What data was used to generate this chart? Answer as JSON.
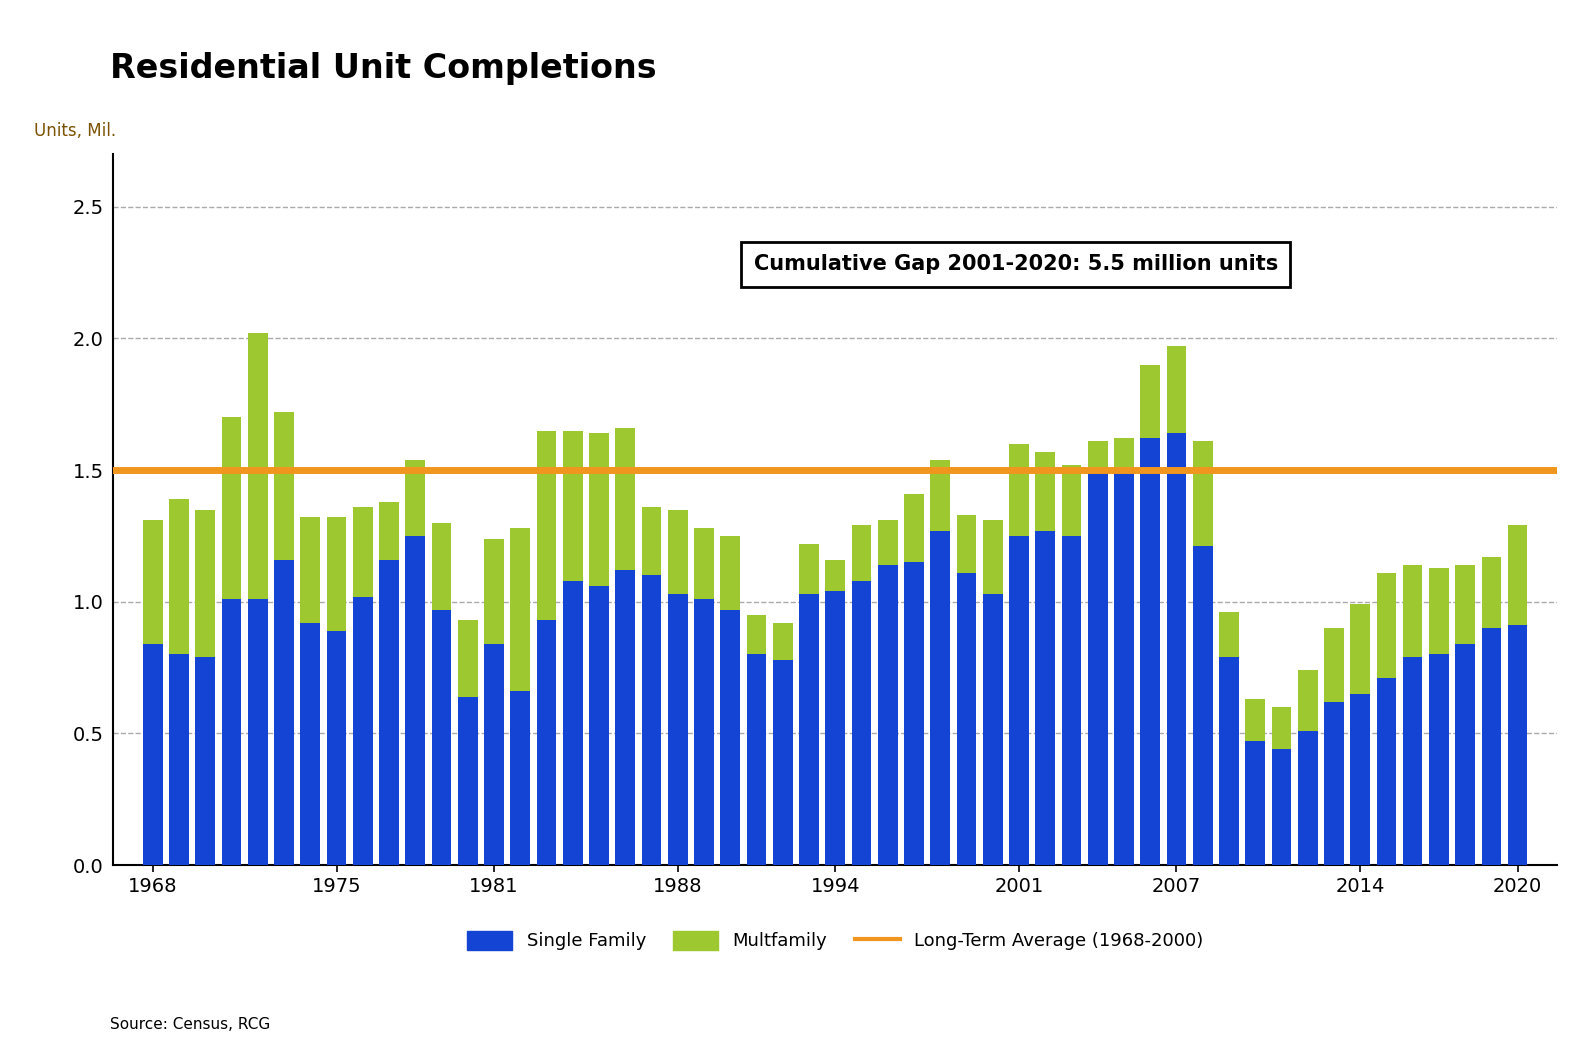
{
  "title": "Residential Unit Completions",
  "ylabel": "Units, Mil.",
  "source": "Source: Census, RCG",
  "annotation": "Cumulative Gap 2001-2020: 5.5 million units",
  "long_term_avg": 1.5,
  "long_term_avg_label": "Long-Term Average (1968-2000)",
  "ylim": [
    0,
    2.7
  ],
  "yticks": [
    0.0,
    0.5,
    1.0,
    1.5,
    2.0,
    2.5
  ],
  "xtick_positions": [
    1968,
    1975,
    1981,
    1988,
    1994,
    2001,
    2007,
    2014,
    2020
  ],
  "years": [
    1968,
    1969,
    1970,
    1971,
    1972,
    1973,
    1974,
    1975,
    1976,
    1977,
    1978,
    1979,
    1980,
    1981,
    1982,
    1983,
    1984,
    1985,
    1986,
    1987,
    1988,
    1989,
    1990,
    1991,
    1992,
    1993,
    1994,
    1995,
    1996,
    1997,
    1998,
    1999,
    2000,
    2001,
    2002,
    2003,
    2004,
    2005,
    2006,
    2007,
    2008,
    2009,
    2010,
    2011,
    2012,
    2013,
    2014,
    2015,
    2016,
    2017,
    2018,
    2019,
    2020
  ],
  "single_family": [
    0.84,
    0.8,
    0.79,
    1.01,
    1.01,
    1.16,
    0.92,
    0.89,
    1.02,
    1.16,
    1.25,
    0.97,
    0.64,
    0.84,
    0.66,
    0.93,
    1.08,
    1.06,
    1.12,
    1.1,
    1.03,
    1.01,
    0.97,
    0.8,
    0.78,
    1.03,
    1.04,
    1.08,
    1.14,
    1.15,
    1.27,
    1.11,
    1.03,
    1.25,
    1.27,
    1.25,
    1.5,
    1.5,
    1.62,
    1.64,
    1.21,
    0.79,
    0.47,
    0.44,
    0.51,
    0.62,
    0.65,
    0.71,
    0.79,
    0.8,
    0.84,
    0.9,
    0.91
  ],
  "multifamily": [
    0.47,
    0.59,
    0.56,
    0.69,
    1.01,
    0.56,
    0.4,
    0.43,
    0.34,
    0.22,
    0.29,
    0.33,
    0.29,
    0.4,
    0.62,
    0.72,
    0.57,
    0.58,
    0.54,
    0.26,
    0.32,
    0.27,
    0.28,
    0.15,
    0.14,
    0.19,
    0.12,
    0.21,
    0.17,
    0.26,
    0.27,
    0.22,
    0.28,
    0.35,
    0.3,
    0.27,
    0.11,
    0.12,
    0.28,
    0.33,
    0.4,
    0.17,
    0.16,
    0.16,
    0.23,
    0.28,
    0.34,
    0.4,
    0.35,
    0.33,
    0.3,
    0.27,
    0.38
  ],
  "blue_color": "#1444d4",
  "green_color": "#9dc830",
  "orange_color": "#f0961e",
  "grid_color": "#aaaaaa",
  "background_color": "#ffffff",
  "title_fontsize": 24,
  "axis_label_fontsize": 12,
  "tick_fontsize": 14,
  "legend_fontsize": 13,
  "annotation_fontsize": 15
}
